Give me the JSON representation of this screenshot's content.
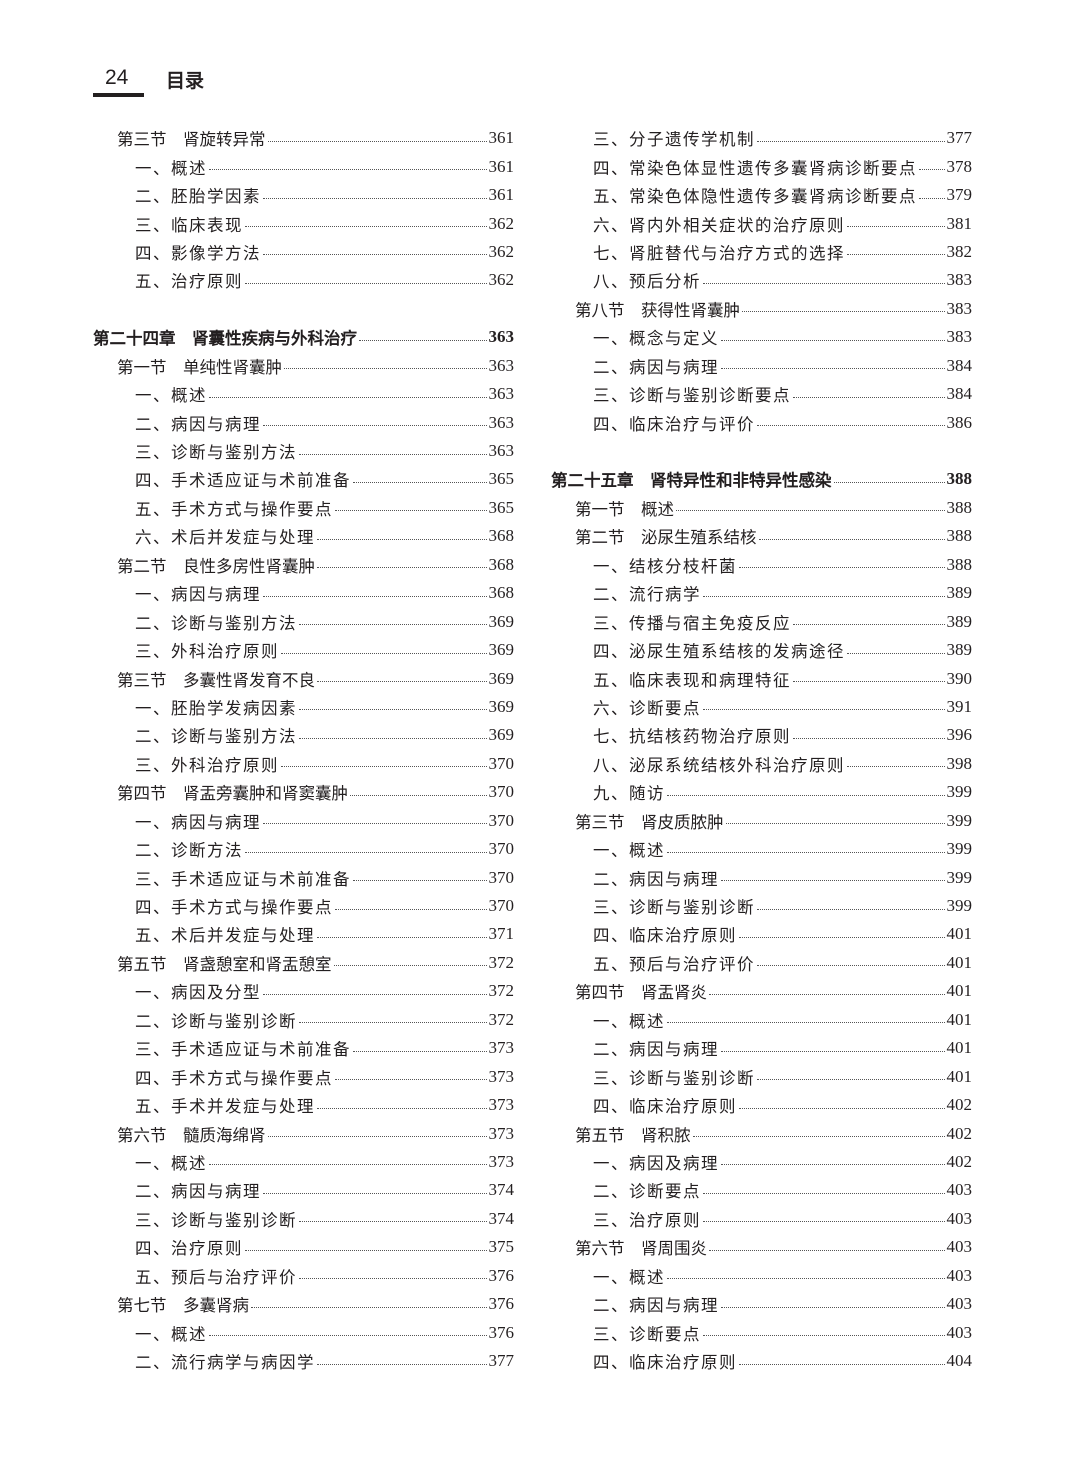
{
  "header": {
    "page_number": "24",
    "title": "目录"
  },
  "columns": [
    [
      {
        "type": "section",
        "text": "第三节　肾旋转异常",
        "page": "361"
      },
      {
        "type": "item",
        "text": "一、概述",
        "page": "361"
      },
      {
        "type": "item",
        "text": "二、胚胎学因素",
        "page": "361"
      },
      {
        "type": "item",
        "text": "三、临床表现",
        "page": "362"
      },
      {
        "type": "item",
        "text": "四、影像学方法",
        "page": "362"
      },
      {
        "type": "item",
        "text": "五、治疗原则",
        "page": "362"
      },
      {
        "type": "blank"
      },
      {
        "type": "chapter",
        "text": "第二十四章　肾囊性疾病与外科治疗",
        "page": "363"
      },
      {
        "type": "section",
        "text": "第一节　单纯性肾囊肿",
        "page": "363"
      },
      {
        "type": "item",
        "text": "一、概述",
        "page": "363"
      },
      {
        "type": "item",
        "text": "二、病因与病理",
        "page": "363"
      },
      {
        "type": "item",
        "text": "三、诊断与鉴别方法",
        "page": "363"
      },
      {
        "type": "item",
        "text": "四、手术适应证与术前准备",
        "page": "365"
      },
      {
        "type": "item",
        "text": "五、手术方式与操作要点",
        "page": "365"
      },
      {
        "type": "item",
        "text": "六、术后并发症与处理",
        "page": "368"
      },
      {
        "type": "section",
        "text": "第二节　良性多房性肾囊肿",
        "page": "368"
      },
      {
        "type": "item",
        "text": "一、病因与病理",
        "page": "368"
      },
      {
        "type": "item",
        "text": "二、诊断与鉴别方法",
        "page": "369"
      },
      {
        "type": "item",
        "text": "三、外科治疗原则",
        "page": "369"
      },
      {
        "type": "section",
        "text": "第三节　多囊性肾发育不良",
        "page": "369"
      },
      {
        "type": "item",
        "text": "一、胚胎学发病因素",
        "page": "369"
      },
      {
        "type": "item",
        "text": "二、诊断与鉴别方法",
        "page": "369"
      },
      {
        "type": "item",
        "text": "三、外科治疗原则",
        "page": "370"
      },
      {
        "type": "section",
        "text": "第四节　肾盂旁囊肿和肾窦囊肿",
        "page": "370"
      },
      {
        "type": "item",
        "text": "一、病因与病理",
        "page": "370"
      },
      {
        "type": "item",
        "text": "二、诊断方法",
        "page": "370"
      },
      {
        "type": "item",
        "text": "三、手术适应证与术前准备",
        "page": "370"
      },
      {
        "type": "item",
        "text": "四、手术方式与操作要点",
        "page": "370"
      },
      {
        "type": "item",
        "text": "五、术后并发症与处理",
        "page": "371"
      },
      {
        "type": "section",
        "text": "第五节　肾盏憩室和肾盂憩室",
        "page": "372"
      },
      {
        "type": "item",
        "text": "一、病因及分型",
        "page": "372"
      },
      {
        "type": "item",
        "text": "二、诊断与鉴别诊断",
        "page": "372"
      },
      {
        "type": "item",
        "text": "三、手术适应证与术前准备",
        "page": "373"
      },
      {
        "type": "item",
        "text": "四、手术方式与操作要点",
        "page": "373"
      },
      {
        "type": "item",
        "text": "五、手术并发症与处理",
        "page": "373"
      },
      {
        "type": "section",
        "text": "第六节　髓质海绵肾",
        "page": "373"
      },
      {
        "type": "item",
        "text": "一、概述",
        "page": "373"
      },
      {
        "type": "item",
        "text": "二、病因与病理",
        "page": "374"
      },
      {
        "type": "item",
        "text": "三、诊断与鉴别诊断",
        "page": "374"
      },
      {
        "type": "item",
        "text": "四、治疗原则",
        "page": "375"
      },
      {
        "type": "item",
        "text": "五、预后与治疗评价",
        "page": "376"
      },
      {
        "type": "section",
        "text": "第七节　多囊肾病",
        "page": "376"
      },
      {
        "type": "item",
        "text": "一、概述",
        "page": "376"
      },
      {
        "type": "item",
        "text": "二、流行病学与病因学",
        "page": "377"
      }
    ],
    [
      {
        "type": "item",
        "text": "三、分子遗传学机制",
        "page": "377"
      },
      {
        "type": "item",
        "text": "四、常染色体显性遗传多囊肾病诊断要点",
        "page": "378"
      },
      {
        "type": "item",
        "text": "五、常染色体隐性遗传多囊肾病诊断要点",
        "page": "379"
      },
      {
        "type": "item",
        "text": "六、肾内外相关症状的治疗原则",
        "page": "381"
      },
      {
        "type": "item",
        "text": "七、肾脏替代与治疗方式的选择",
        "page": "382"
      },
      {
        "type": "item",
        "text": "八、预后分析",
        "page": "383"
      },
      {
        "type": "section",
        "text": "第八节　获得性肾囊肿",
        "page": "383"
      },
      {
        "type": "item",
        "text": "一、概念与定义",
        "page": "383"
      },
      {
        "type": "item",
        "text": "二、病因与病理",
        "page": "384"
      },
      {
        "type": "item",
        "text": "三、诊断与鉴别诊断要点",
        "page": "384"
      },
      {
        "type": "item",
        "text": "四、临床治疗与评价",
        "page": "386"
      },
      {
        "type": "blank"
      },
      {
        "type": "chapter",
        "text": "第二十五章　肾特异性和非特异性感染",
        "page": "388"
      },
      {
        "type": "section",
        "text": "第一节　概述",
        "page": "388"
      },
      {
        "type": "section",
        "text": "第二节　泌尿生殖系结核",
        "page": "388"
      },
      {
        "type": "item",
        "text": "一、结核分枝杆菌",
        "page": "388"
      },
      {
        "type": "item",
        "text": "二、流行病学",
        "page": "389"
      },
      {
        "type": "item",
        "text": "三、传播与宿主免疫反应",
        "page": "389"
      },
      {
        "type": "item",
        "text": "四、泌尿生殖系结核的发病途径",
        "page": "389"
      },
      {
        "type": "item",
        "text": "五、临床表现和病理特征",
        "page": "390"
      },
      {
        "type": "item",
        "text": "六、诊断要点",
        "page": "391"
      },
      {
        "type": "item",
        "text": "七、抗结核药物治疗原则",
        "page": "396"
      },
      {
        "type": "item",
        "text": "八、泌尿系统结核外科治疗原则",
        "page": "398"
      },
      {
        "type": "item",
        "text": "九、随访",
        "page": "399"
      },
      {
        "type": "section",
        "text": "第三节　肾皮质脓肿",
        "page": "399"
      },
      {
        "type": "item",
        "text": "一、概述",
        "page": "399"
      },
      {
        "type": "item",
        "text": "二、病因与病理",
        "page": "399"
      },
      {
        "type": "item",
        "text": "三、诊断与鉴别诊断",
        "page": "399"
      },
      {
        "type": "item",
        "text": "四、临床治疗原则",
        "page": "401"
      },
      {
        "type": "item",
        "text": "五、预后与治疗评价",
        "page": "401"
      },
      {
        "type": "section",
        "text": "第四节　肾盂肾炎",
        "page": "401"
      },
      {
        "type": "item",
        "text": "一、概述",
        "page": "401"
      },
      {
        "type": "item",
        "text": "二、病因与病理",
        "page": "401"
      },
      {
        "type": "item",
        "text": "三、诊断与鉴别诊断",
        "page": "401"
      },
      {
        "type": "item",
        "text": "四、临床治疗原则",
        "page": "402"
      },
      {
        "type": "section",
        "text": "第五节　肾积脓",
        "page": "402"
      },
      {
        "type": "item",
        "text": "一、病因及病理",
        "page": "402"
      },
      {
        "type": "item",
        "text": "二、诊断要点",
        "page": "403"
      },
      {
        "type": "item",
        "text": "三、治疗原则",
        "page": "403"
      },
      {
        "type": "section",
        "text": "第六节　肾周围炎",
        "page": "403"
      },
      {
        "type": "item",
        "text": "一、概述",
        "page": "403"
      },
      {
        "type": "item",
        "text": "二、病因与病理",
        "page": "403"
      },
      {
        "type": "item",
        "text": "三、诊断要点",
        "page": "403"
      },
      {
        "type": "item",
        "text": "四、临床治疗原则",
        "page": "404"
      }
    ]
  ]
}
